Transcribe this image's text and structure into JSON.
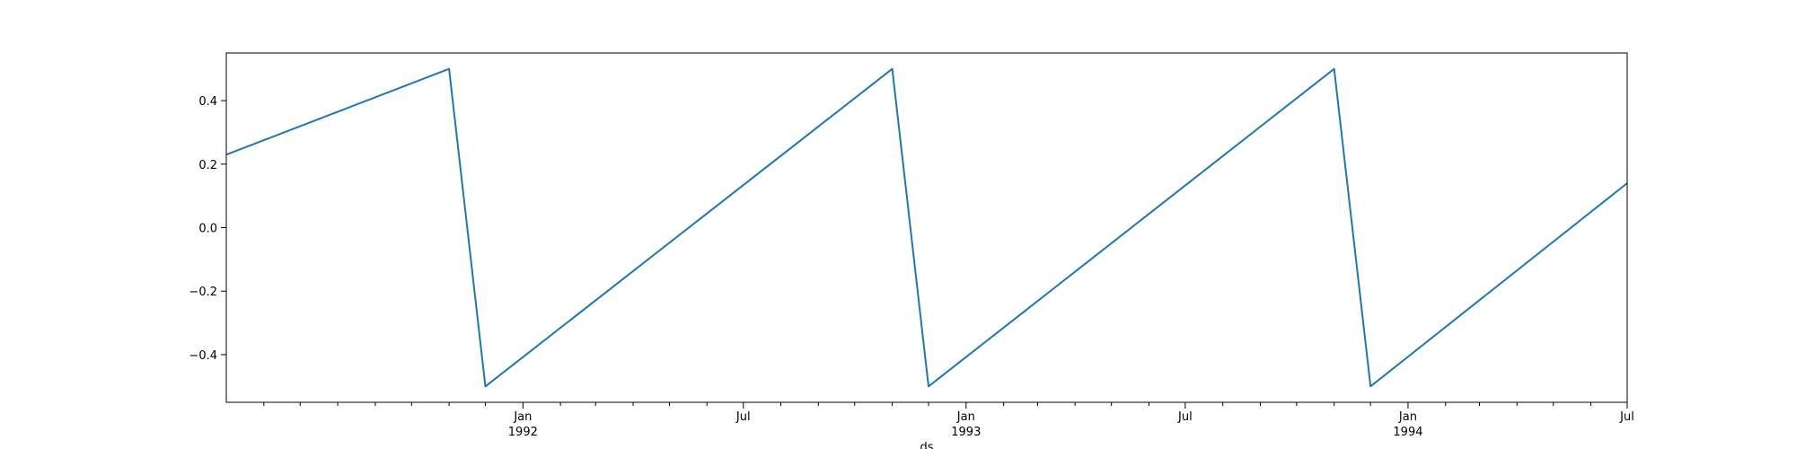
{
  "chart_data": {
    "type": "line",
    "title": "",
    "xlabel": "ds",
    "ylabel": "",
    "grid": false,
    "xlim": [
      "1991-05-01",
      "1994-07-01"
    ],
    "ylim": [
      -0.55,
      0.55
    ],
    "y_ticks": [
      {
        "value": -0.4,
        "label": "−0.4"
      },
      {
        "value": -0.2,
        "label": "−0.2"
      },
      {
        "value": 0.0,
        "label": "0.0"
      },
      {
        "value": 0.2,
        "label": "0.2"
      },
      {
        "value": 0.4,
        "label": "0.4"
      }
    ],
    "x_major_ticks": [
      {
        "date": "1992-01-01",
        "label": "Jan",
        "sublabel": "1992"
      },
      {
        "date": "1992-07-01",
        "label": "Jul",
        "sublabel": ""
      },
      {
        "date": "1993-01-01",
        "label": "Jan",
        "sublabel": "1993"
      },
      {
        "date": "1993-07-01",
        "label": "Jul",
        "sublabel": ""
      },
      {
        "date": "1994-01-01",
        "label": "Jan",
        "sublabel": "1994"
      },
      {
        "date": "1994-07-01",
        "label": "Jul",
        "sublabel": ""
      }
    ],
    "x_minor_ticks": [
      "1991-06-01",
      "1991-07-01",
      "1991-08-01",
      "1991-09-01",
      "1991-10-01",
      "1991-11-01",
      "1991-12-01",
      "1992-02-01",
      "1992-03-01",
      "1992-04-01",
      "1992-05-01",
      "1992-06-01",
      "1992-08-01",
      "1992-09-01",
      "1992-10-01",
      "1992-11-01",
      "1992-12-01",
      "1993-02-01",
      "1993-03-01",
      "1993-04-01",
      "1993-05-01",
      "1993-06-01",
      "1993-08-01",
      "1993-09-01",
      "1993-10-01",
      "1993-11-01",
      "1993-12-01",
      "1994-02-01",
      "1994-03-01",
      "1994-04-01",
      "1994-05-01",
      "1994-06-01"
    ],
    "series": [
      {
        "color": "#1f77b4",
        "points": [
          {
            "x": "1991-05-01",
            "y": 0.23
          },
          {
            "x": "1991-11-01",
            "y": 0.5
          },
          {
            "x": "1991-12-01",
            "y": -0.5
          },
          {
            "x": "1992-11-01",
            "y": 0.5
          },
          {
            "x": "1992-12-01",
            "y": -0.5
          },
          {
            "x": "1993-11-01",
            "y": 0.5
          },
          {
            "x": "1993-12-01",
            "y": -0.5
          },
          {
            "x": "1994-07-01",
            "y": 0.14
          }
        ]
      }
    ]
  }
}
